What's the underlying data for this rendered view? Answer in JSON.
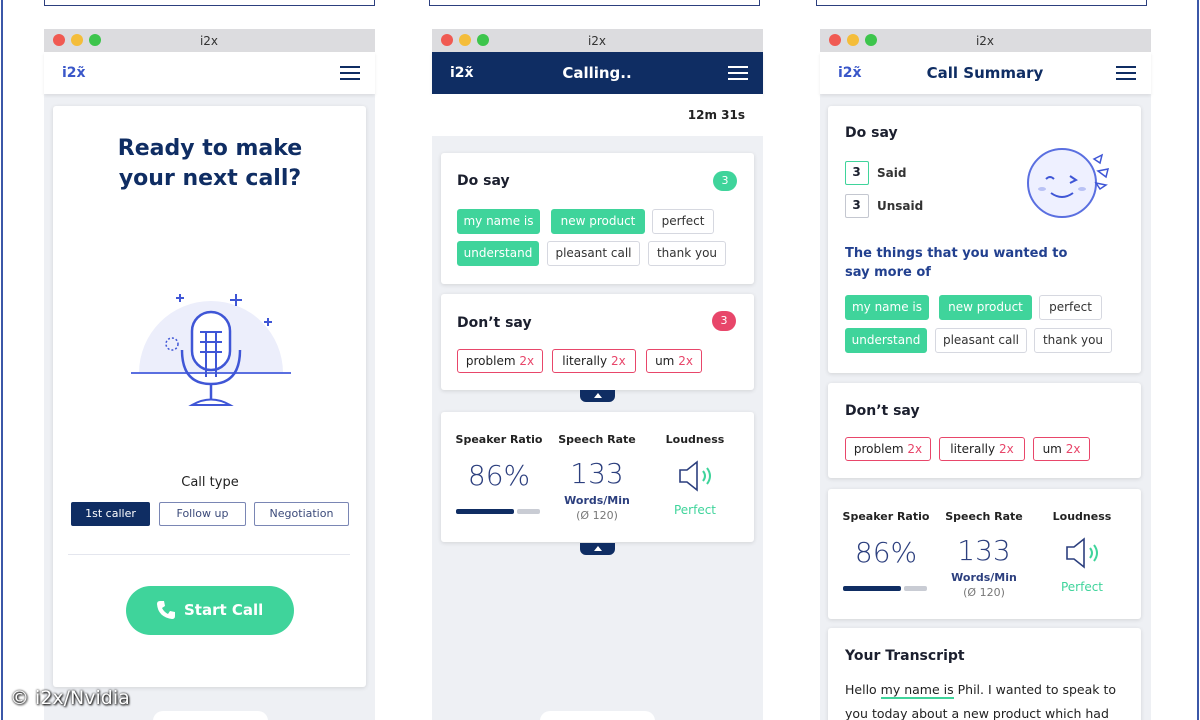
{
  "watermark": "© i2x/Nvidia",
  "screens": [
    {
      "window_title": "i2x",
      "logo": "i2x̃",
      "heading": "Ready to make your next call?",
      "call_type": {
        "label": "Call type",
        "options": [
          "1st caller",
          "Follow up",
          "Negotiation"
        ],
        "selected": 0
      },
      "start_button": "Start Call"
    },
    {
      "window_title": "i2x",
      "logo": "i2x̃",
      "title": "Calling..",
      "timer": "12m 31s",
      "do_say": {
        "title": "Do say",
        "count": 3,
        "tags": [
          {
            "text": "my name is",
            "said": true
          },
          {
            "text": "new product",
            "said": true
          },
          {
            "text": "perfect",
            "said": false
          },
          {
            "text": "understand",
            "said": true
          },
          {
            "text": "pleasant call",
            "said": false
          },
          {
            "text": "thank you",
            "said": false
          }
        ]
      },
      "dont_say": {
        "title": "Don’t say",
        "count": 3,
        "tags": [
          {
            "word": "problem",
            "count": "2x"
          },
          {
            "word": "literally",
            "count": "2x"
          },
          {
            "word": "um",
            "count": "2x"
          }
        ]
      },
      "metrics": {
        "speaker_ratio": {
          "label": "Speaker Ratio",
          "value": "86%"
        },
        "speech_rate": {
          "label": "Speech Rate",
          "value": 133,
          "unit": "Words/Min",
          "average": "(Ø 120)"
        },
        "loudness": {
          "label": "Loudness",
          "status": "Perfect"
        }
      }
    },
    {
      "window_title": "i2x",
      "logo": "i2x̃",
      "title": "Call Summary",
      "do_say": {
        "title": "Do say",
        "said": {
          "count": 3,
          "label": "Said"
        },
        "unsaid": {
          "count": 3,
          "label": "Unsaid"
        },
        "subtitle": "The things that you wanted to say more of",
        "tags": [
          {
            "text": "my name is",
            "said": true
          },
          {
            "text": "new product",
            "said": true
          },
          {
            "text": "perfect",
            "said": false
          },
          {
            "text": "understand",
            "said": true
          },
          {
            "text": "pleasant call",
            "said": false
          },
          {
            "text": "thank you",
            "said": false
          }
        ]
      },
      "dont_say": {
        "title": "Don’t say",
        "tags": [
          {
            "word": "problem",
            "count": "2x"
          },
          {
            "word": "literally",
            "count": "2x"
          },
          {
            "word": "um",
            "count": "2x"
          }
        ]
      },
      "metrics": {
        "speaker_ratio": {
          "label": "Speaker Ratio",
          "value": "86%"
        },
        "speech_rate": {
          "label": "Speech Rate",
          "value": 133,
          "unit": "Words/Min",
          "average": "(Ø 120)"
        },
        "loudness": {
          "label": "Loudness",
          "status": "Perfect"
        }
      },
      "transcript": {
        "title": "Your Transcript",
        "before": "Hello",
        "highlight": "my name is",
        "after": "Phil. I wanted to speak to you today about a new product which had just"
      }
    }
  ]
}
